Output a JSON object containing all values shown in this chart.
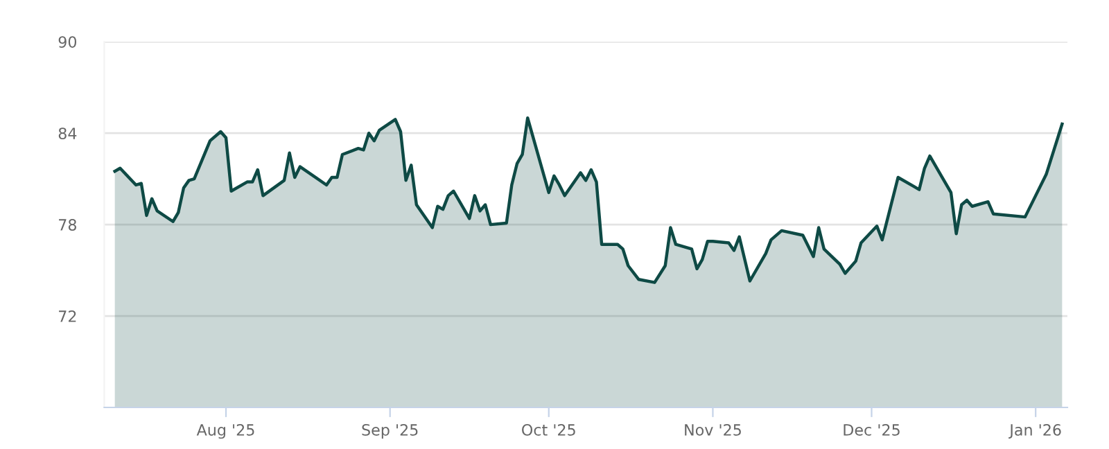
{
  "chart_data": {
    "type": "area",
    "color": "#0e4a45",
    "x": [
      "2025-07-11",
      "2025-07-12",
      "2025-07-15",
      "2025-07-16",
      "2025-07-17",
      "2025-07-18",
      "2025-07-19",
      "2025-07-22",
      "2025-07-23",
      "2025-07-24",
      "2025-07-25",
      "2025-07-26",
      "2025-07-29",
      "2025-07-31",
      "2025-08-01",
      "2025-08-02",
      "2025-08-05",
      "2025-08-06",
      "2025-08-07",
      "2025-08-08",
      "2025-08-12",
      "2025-08-13",
      "2025-08-14",
      "2025-08-15",
      "2025-08-20",
      "2025-08-21",
      "2025-08-22",
      "2025-08-23",
      "2025-08-26",
      "2025-08-27",
      "2025-08-28",
      "2025-08-29",
      "2025-08-30",
      "2025-09-02",
      "2025-09-03",
      "2025-09-04",
      "2025-09-05",
      "2025-09-06",
      "2025-09-09",
      "2025-09-10",
      "2025-09-11",
      "2025-09-12",
      "2025-09-13",
      "2025-09-16",
      "2025-09-17",
      "2025-09-18",
      "2025-09-19",
      "2025-09-20",
      "2025-09-23",
      "2025-09-24",
      "2025-09-25",
      "2025-09-26",
      "2025-09-27",
      "2025-10-01",
      "2025-10-02",
      "2025-10-03",
      "2025-10-04",
      "2025-10-07",
      "2025-10-08",
      "2025-10-09",
      "2025-10-10",
      "2025-10-11",
      "2025-10-14",
      "2025-10-15",
      "2025-10-16",
      "2025-10-18",
      "2025-10-21",
      "2025-10-23",
      "2025-10-24",
      "2025-10-25",
      "2025-10-28",
      "2025-10-29",
      "2025-10-30",
      "2025-10-31",
      "2025-11-01",
      "2025-11-04",
      "2025-11-05",
      "2025-11-06",
      "2025-11-08",
      "2025-11-11",
      "2025-11-12",
      "2025-11-14",
      "2025-11-18",
      "2025-11-20",
      "2025-11-21",
      "2025-11-22",
      "2025-11-25",
      "2025-11-26",
      "2025-11-28",
      "2025-11-29",
      "2025-12-02",
      "2025-12-03",
      "2025-12-06",
      "2025-12-09",
      "2025-12-10",
      "2025-12-11",
      "2025-12-12",
      "2025-12-16",
      "2025-12-17",
      "2025-12-18",
      "2025-12-19",
      "2025-12-20",
      "2025-12-23",
      "2025-12-24",
      "2025-12-30",
      "2026-01-03",
      "2026-01-06"
    ],
    "values": [
      81.5,
      81.7,
      80.6,
      80.7,
      78.6,
      79.7,
      78.9,
      78.2,
      78.8,
      80.4,
      80.9,
      81.0,
      83.5,
      84.1,
      83.7,
      80.2,
      80.8,
      80.8,
      81.6,
      79.9,
      80.9,
      82.7,
      81.1,
      81.8,
      80.6,
      81.1,
      81.1,
      82.6,
      83.0,
      82.9,
      84.0,
      83.5,
      84.2,
      84.9,
      84.1,
      80.9,
      81.9,
      79.3,
      77.8,
      79.2,
      79.0,
      79.9,
      80.2,
      78.4,
      79.9,
      78.9,
      79.3,
      78.0,
      78.1,
      80.6,
      82.0,
      82.6,
      85.0,
      80.1,
      81.2,
      80.6,
      79.9,
      81.4,
      80.9,
      81.6,
      80.8,
      76.7,
      76.7,
      76.4,
      75.3,
      74.4,
      74.2,
      75.3,
      77.8,
      76.7,
      76.4,
      75.1,
      75.7,
      76.9,
      76.9,
      76.8,
      76.3,
      77.2,
      74.3,
      76.1,
      77.0,
      77.6,
      77.3,
      75.9,
      77.8,
      76.4,
      75.4,
      74.8,
      75.6,
      76.8,
      77.9,
      77.0,
      81.1,
      80.5,
      80.3,
      81.7,
      82.5,
      80.1,
      77.4,
      79.3,
      79.6,
      79.2,
      79.5,
      78.7,
      78.5,
      81.3,
      84.6
    ],
    "xlim": [
      "2025-07-09",
      "2026-01-07"
    ],
    "xticks": [
      {
        "value": "2025-08-01",
        "label": "Aug '25"
      },
      {
        "value": "2025-09-01",
        "label": "Sep '25"
      },
      {
        "value": "2025-10-01",
        "label": "Oct '25"
      },
      {
        "value": "2025-11-01",
        "label": "Nov '25"
      },
      {
        "value": "2025-12-01",
        "label": "Dec '25"
      },
      {
        "value": "2026-01-01",
        "label": "Jan '26"
      }
    ],
    "ylim": [
      66,
      90
    ],
    "yticks": [
      72,
      78,
      84,
      90
    ],
    "grid": "y",
    "legend": false,
    "marker": "none",
    "line_style": "solid"
  }
}
